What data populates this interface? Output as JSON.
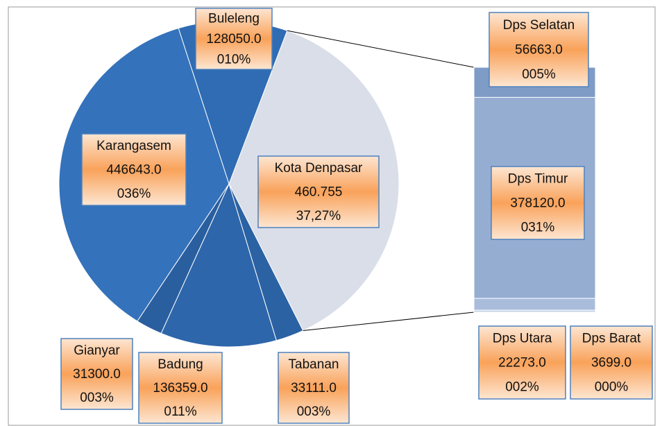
{
  "chart_data": [
    {
      "type": "pie",
      "categories": [
        "Kota Denpasar",
        "Tabanan",
        "Badung",
        "Gianyar",
        "Karangasem",
        "Buleleng"
      ],
      "values": [
        460755,
        33111,
        136359,
        31300,
        446643,
        128050
      ],
      "value_labels": [
        "460.755",
        "33111.0",
        "136359.0",
        "31300.0",
        "446643.0",
        "128050.0"
      ],
      "percents": [
        37.27,
        3,
        11,
        3,
        36,
        10
      ],
      "percent_labels": [
        "37,27%",
        "003%",
        "011%",
        "003%",
        "036%",
        "010%"
      ],
      "colors": [
        "#d9dee9",
        "#2b62a3",
        "#2d66aa",
        "#2a5f9f",
        "#3472bb",
        "#2f6cb3"
      ]
    },
    {
      "type": "bar",
      "categories": [
        "Dps Selatan",
        "Dps Timur",
        "Dps Utara",
        "Dps Barat"
      ],
      "values": [
        56663,
        378120,
        22273,
        3699
      ],
      "value_labels": [
        "56663.0",
        "378120.0",
        "22273.0",
        "3699.0"
      ],
      "percents": [
        5,
        31,
        2,
        0
      ],
      "percent_labels": [
        "005%",
        "031%",
        "002%",
        "000%"
      ],
      "colors": [
        "#7f9cc6",
        "#96add2",
        "#a9bcdc",
        "#c3d0e6"
      ]
    }
  ]
}
